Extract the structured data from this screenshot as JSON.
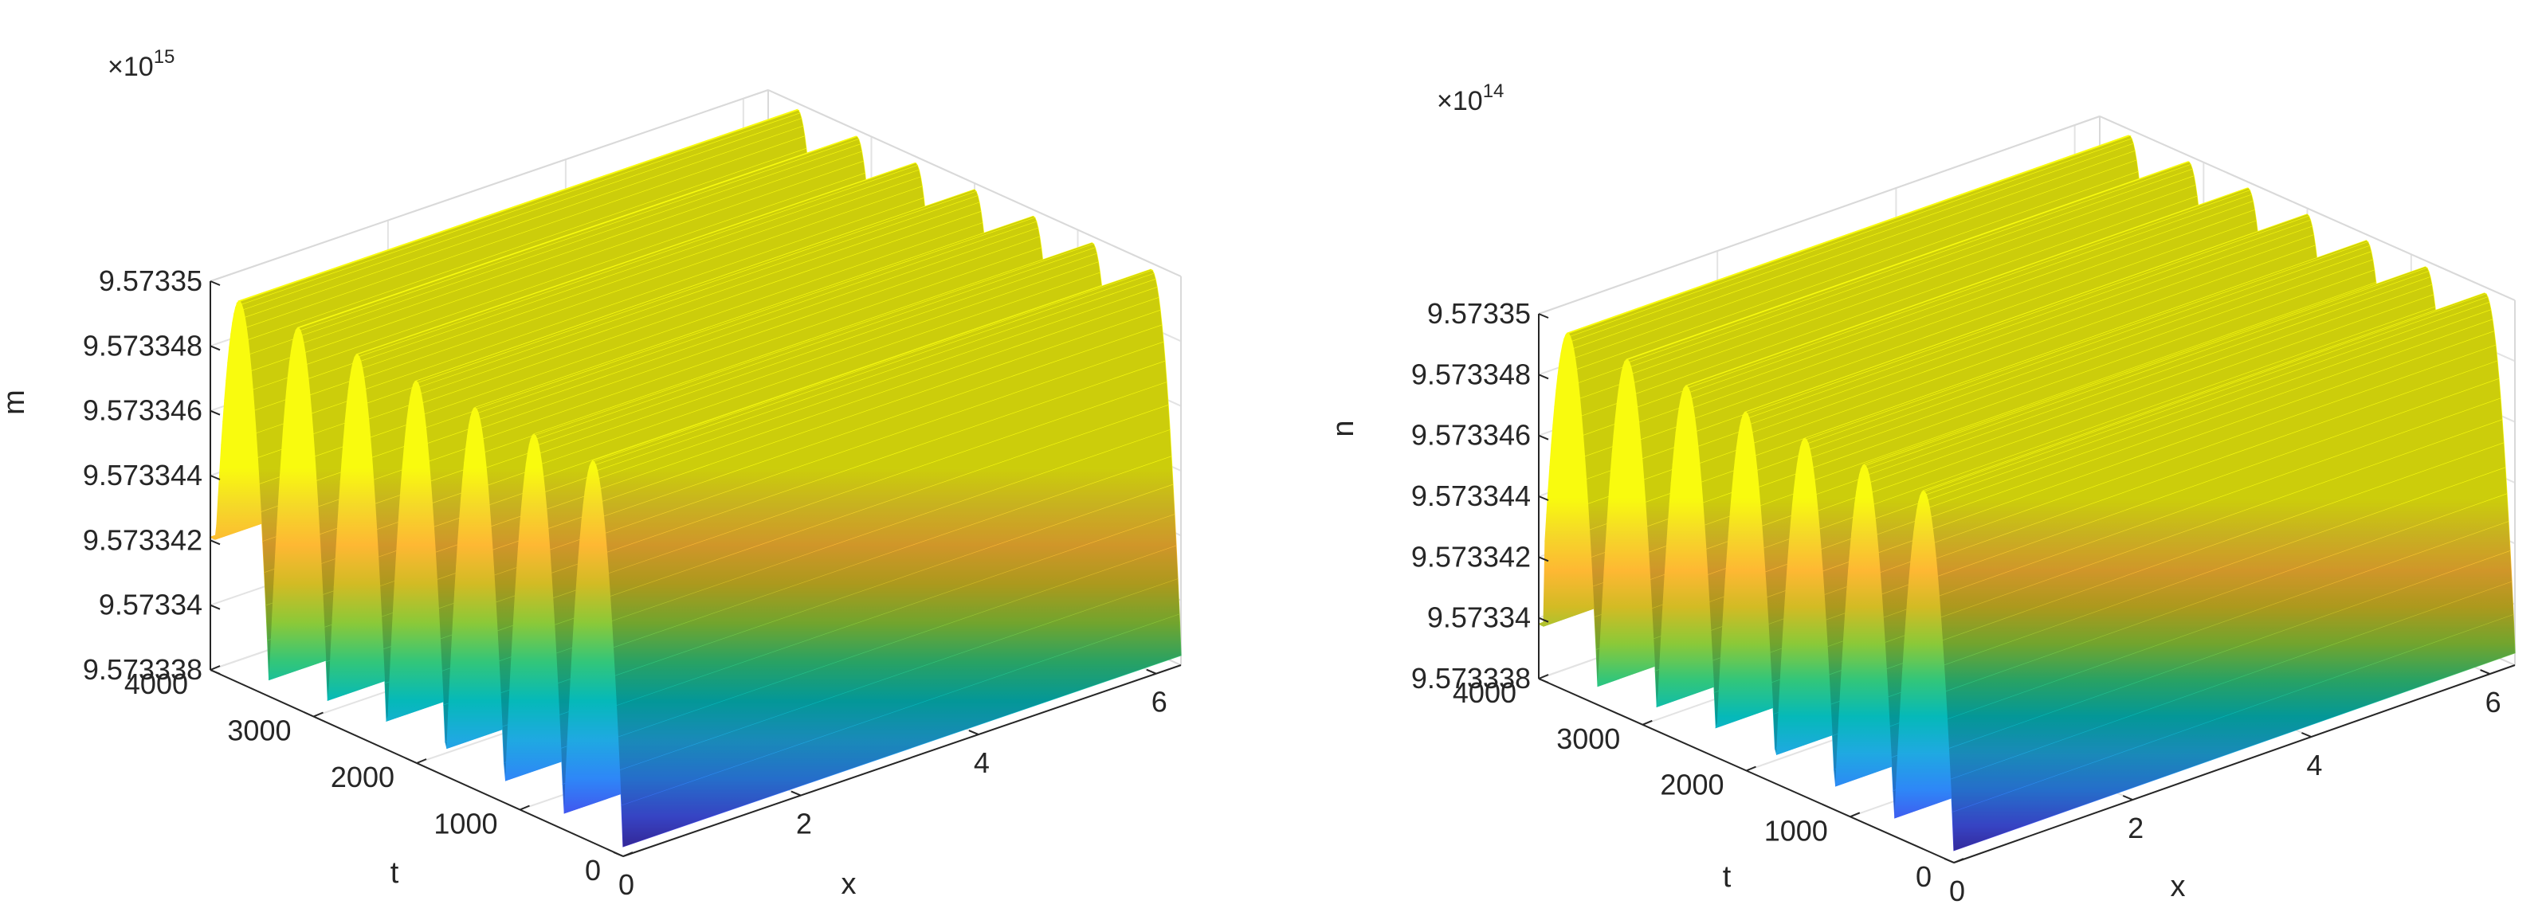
{
  "chart_data": [
    {
      "type": "surface",
      "zlabel": "m",
      "tlabel": "t",
      "xlabel": "x",
      "exponent_base": "×10",
      "exponent_power": "15",
      "z_ticks": [
        "9.573338",
        "9.57334",
        "9.573342",
        "9.573344",
        "9.573346",
        "9.573348",
        "9.57335"
      ],
      "t_ticks": [
        "0",
        "1000",
        "2000",
        "3000",
        "4000"
      ],
      "x_ticks": [
        "0",
        "2",
        "4",
        "6"
      ],
      "zlim": [
        9.573338,
        9.57335
      ],
      "tlim": [
        0,
        4000
      ],
      "xlim": [
        0,
        6.28
      ],
      "oscillation_count": 7,
      "z_base": 9.5733383,
      "z_peak": 9.5733498,
      "z_initial": 9.5733421,
      "colormap": [
        "#3e26a8",
        "#4352ee",
        "#2e87f7",
        "#1fa9e1",
        "#05b9b9",
        "#32c67a",
        "#8bc938",
        "#d2bb24",
        "#feb833",
        "#f5d828",
        "#f9fb0e"
      ],
      "grid": true
    },
    {
      "type": "surface",
      "zlabel": "n",
      "tlabel": "t",
      "xlabel": "x",
      "exponent_base": "×10",
      "exponent_power": "14",
      "z_ticks": [
        "9.573338",
        "9.57334",
        "9.573342",
        "9.573344",
        "9.573346",
        "9.573348",
        "9.57335"
      ],
      "t_ticks": [
        "0",
        "1000",
        "2000",
        "3000",
        "4000"
      ],
      "x_ticks": [
        "0",
        "2",
        "4",
        "6"
      ],
      "zlim": [
        9.573338,
        9.57335
      ],
      "tlim": [
        0,
        4000
      ],
      "xlim": [
        0,
        6.28
      ],
      "oscillation_count": 7,
      "z_base": 9.5733384,
      "z_peak": 9.5733498,
      "z_initial": 9.5733398,
      "colormap": [
        "#3e26a8",
        "#4352ee",
        "#2e87f7",
        "#1fa9e1",
        "#05b9b9",
        "#32c67a",
        "#8bc938",
        "#d2bb24",
        "#feb833",
        "#f5d828",
        "#f9fb0e"
      ],
      "grid": true
    }
  ]
}
